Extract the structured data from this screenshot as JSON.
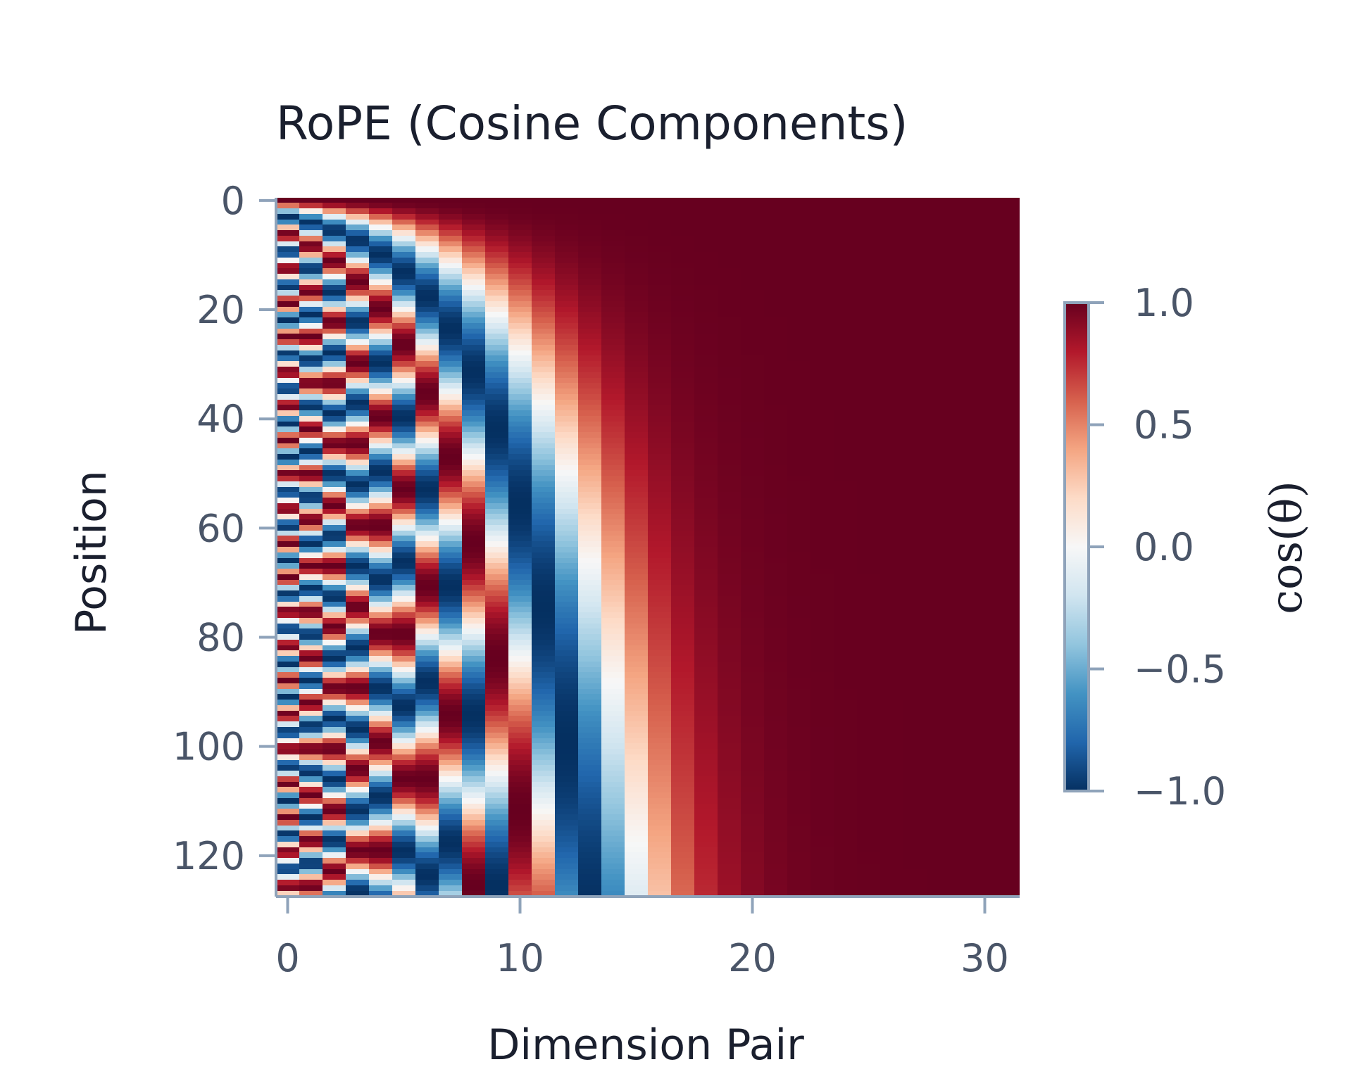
{
  "chart_data": {
    "type": "heatmap",
    "title": "RoPE (Cosine Components)",
    "xlabel": "Dimension Pair",
    "ylabel": "Position",
    "x": {
      "count": 32,
      "range": [
        0,
        31
      ],
      "ticks": [
        0,
        10,
        20,
        30
      ],
      "tick_labels": [
        "0",
        "10",
        "20",
        "30"
      ]
    },
    "y": {
      "count": 128,
      "range": [
        0,
        127
      ],
      "inverted": true,
      "ticks": [
        0,
        20,
        40,
        60,
        80,
        100,
        120
      ],
      "tick_labels": [
        "0",
        "20",
        "40",
        "60",
        "80",
        "100",
        "120"
      ]
    },
    "values_formula": "cos(position * 10000^(-2*pair/64))",
    "rope": {
      "base": 10000,
      "dim": 64
    },
    "colormap": "RdBu_r",
    "colormap_stops": [
      "#053061",
      "#2166ac",
      "#4393c3",
      "#92c5de",
      "#d1e5f0",
      "#f7f7f7",
      "#fddbc7",
      "#f4a582",
      "#d6604d",
      "#b2182b",
      "#67001f"
    ],
    "vmin": -1.0,
    "vmax": 1.0,
    "colorbar": {
      "label": "cos(θ)",
      "ticks": [
        1.0,
        0.5,
        0.0,
        -0.5,
        -1.0
      ],
      "tick_labels": [
        "1.0",
        "0.5",
        "0.0",
        "−0.5",
        "−1.0"
      ]
    },
    "grid": false,
    "colors": {
      "axis_line": "#8fa3ba",
      "tick_text": "#4a5568",
      "title_text": "#1a1f2e"
    }
  }
}
